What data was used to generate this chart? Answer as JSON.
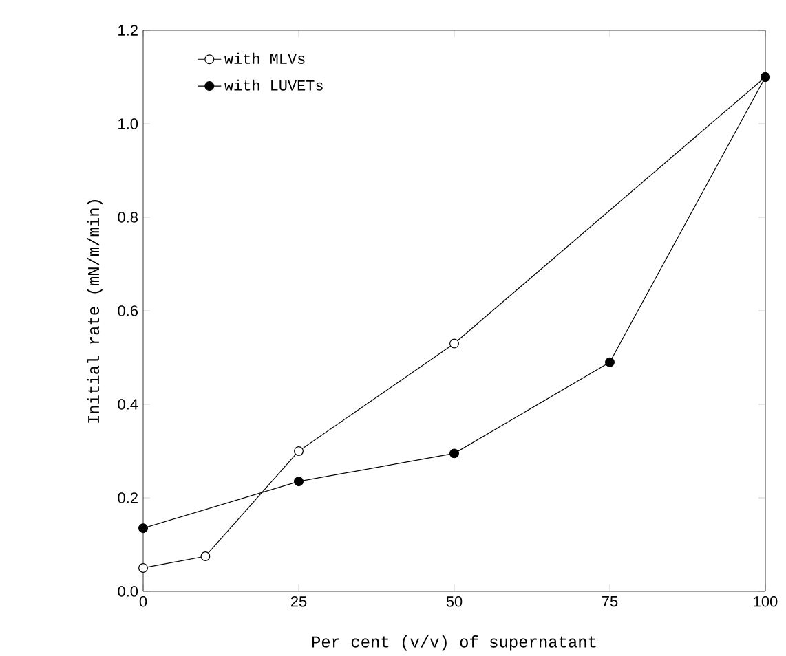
{
  "chart_data": {
    "type": "line",
    "xlabel": "Per cent (v/v) of supernatant",
    "ylabel": "Initial rate (mN/m/min)",
    "xlim": [
      0,
      100
    ],
    "xticks": [
      0,
      25,
      50,
      75,
      100
    ],
    "ylim": [
      0,
      1.2
    ],
    "yticks": [
      {
        "value": 0,
        "label": "0.0"
      },
      {
        "value": 0.2,
        "label": "0.2"
      },
      {
        "value": 0.4,
        "label": "0.4"
      },
      {
        "value": 0.6,
        "label": "0.6"
      },
      {
        "value": 0.8,
        "label": "0.8"
      },
      {
        "value": 1.0,
        "label": "1.0"
      },
      {
        "value": 1.2,
        "label": "1.2"
      }
    ],
    "legend": "top left",
    "marker": "circle",
    "line_style": "solid",
    "grid": false,
    "series": [
      {
        "name": "with MLVs",
        "color": "#000000",
        "x": [
          0,
          10,
          25,
          50,
          100
        ],
        "values": [
          0.05,
          0.075,
          0.3,
          0.53,
          1.1
        ]
      },
      {
        "name": "with LUVETs",
        "color": "#000000",
        "x": [
          0,
          25,
          50,
          75,
          100
        ],
        "values": [
          0.135,
          0.235,
          0.295,
          0.49,
          1.1
        ]
      }
    ]
  }
}
